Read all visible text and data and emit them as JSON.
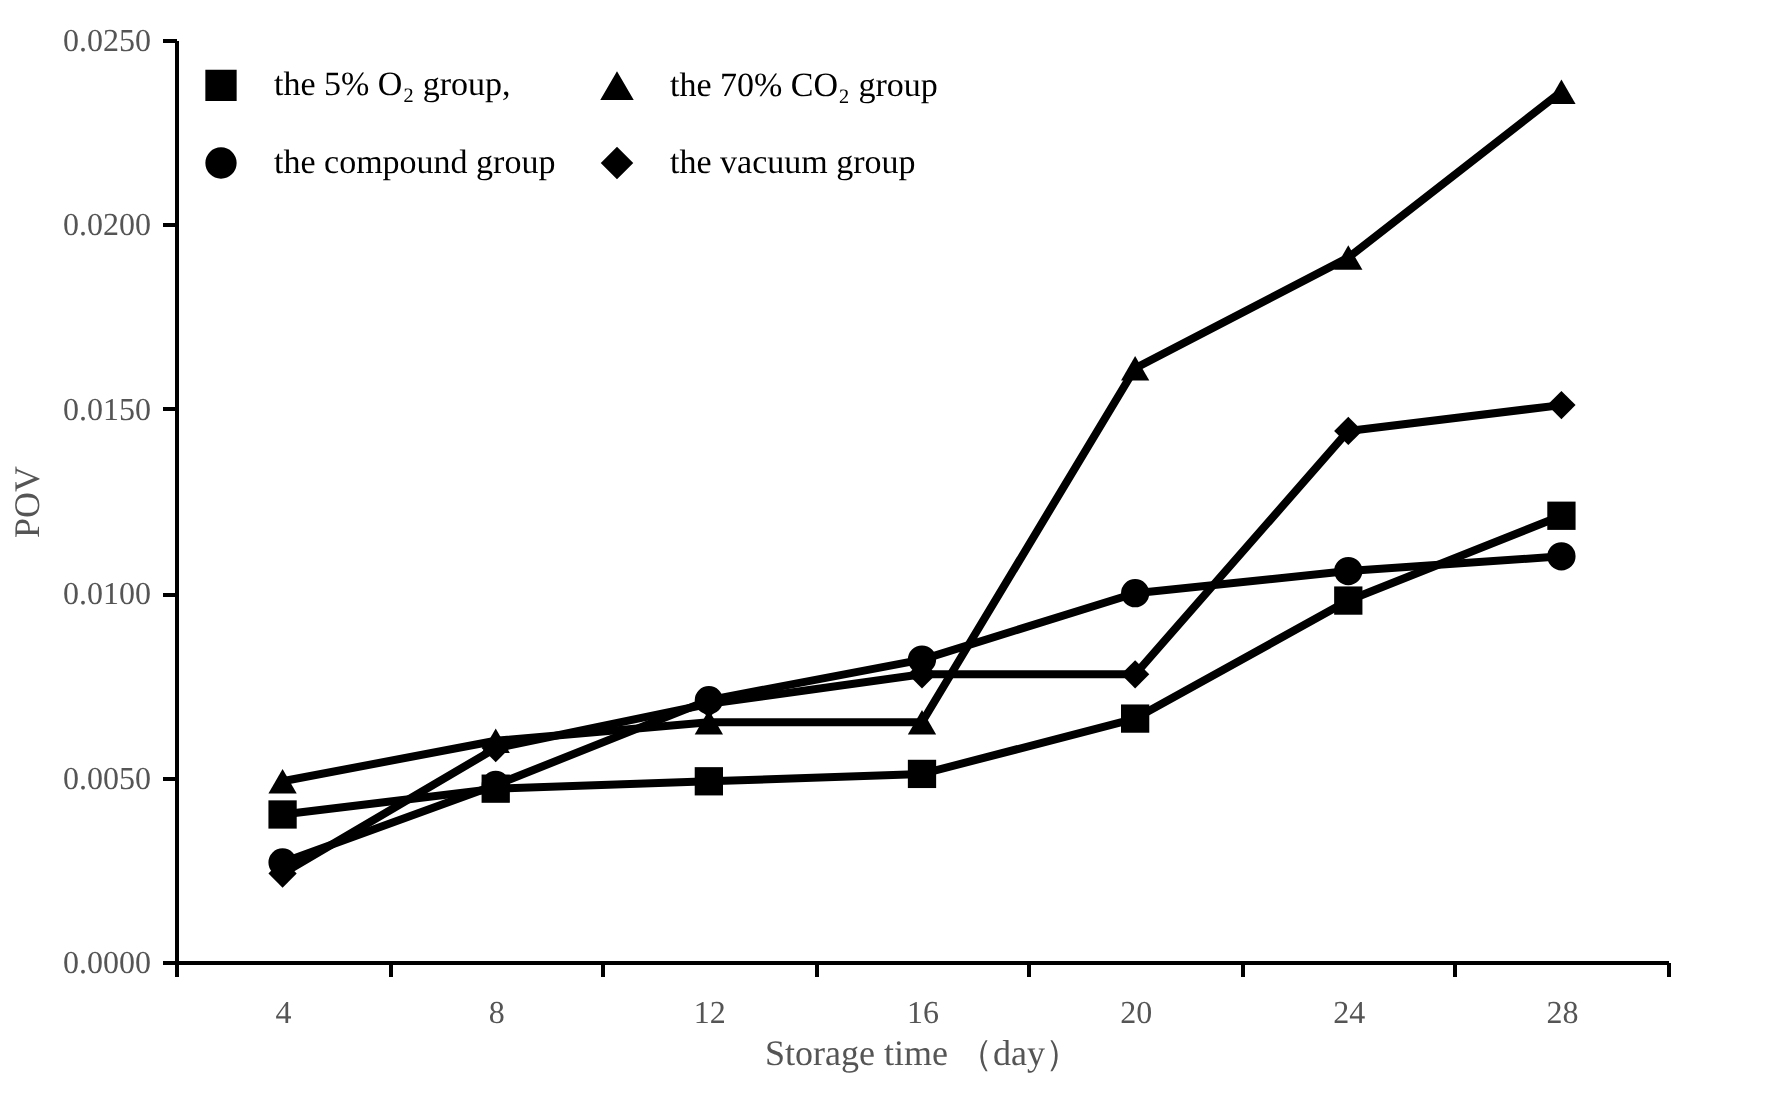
{
  "chart_data": {
    "type": "line",
    "xlabel": "Storage time （day）",
    "ylabel": "POV",
    "categories": [
      "4",
      "8",
      "12",
      "16",
      "20",
      "24",
      "28"
    ],
    "ylim": [
      0,
      0.025
    ],
    "yticks": [
      {
        "value": 0,
        "label": "0.0000"
      },
      {
        "value": 0.005,
        "label": "0.0050"
      },
      {
        "value": 0.01,
        "label": "0.0100"
      },
      {
        "value": 0.015,
        "label": "0.0150"
      },
      {
        "value": 0.02,
        "label": "0.0200"
      },
      {
        "value": 0.025,
        "label": "0.0250"
      }
    ],
    "grid": false,
    "legend": "top left",
    "line_style": "solid",
    "series": [
      {
        "name": "the 5% O₂ group,",
        "color": "#000000",
        "marker": "square",
        "values": [
          0.004,
          0.0047,
          0.0049,
          0.0051,
          0.0066,
          0.0098,
          0.0121
        ]
      },
      {
        "name": "the compound group",
        "color": "#000000",
        "marker": "circle",
        "values": [
          0.0027,
          0.0048,
          0.0071,
          0.0082,
          0.01,
          0.0106,
          0.011
        ]
      },
      {
        "name": "the 70% CO₂ group",
        "color": "#000000",
        "marker": "triangle",
        "values": [
          0.0049,
          0.006,
          0.0065,
          0.0065,
          0.0161,
          0.0191,
          0.0236
        ]
      },
      {
        "name": "the vacuum group",
        "color": "#000000",
        "marker": "diamond",
        "values": [
          0.0024,
          0.0058,
          0.007,
          0.0078,
          0.0078,
          0.0144,
          0.0151
        ]
      }
    ]
  }
}
